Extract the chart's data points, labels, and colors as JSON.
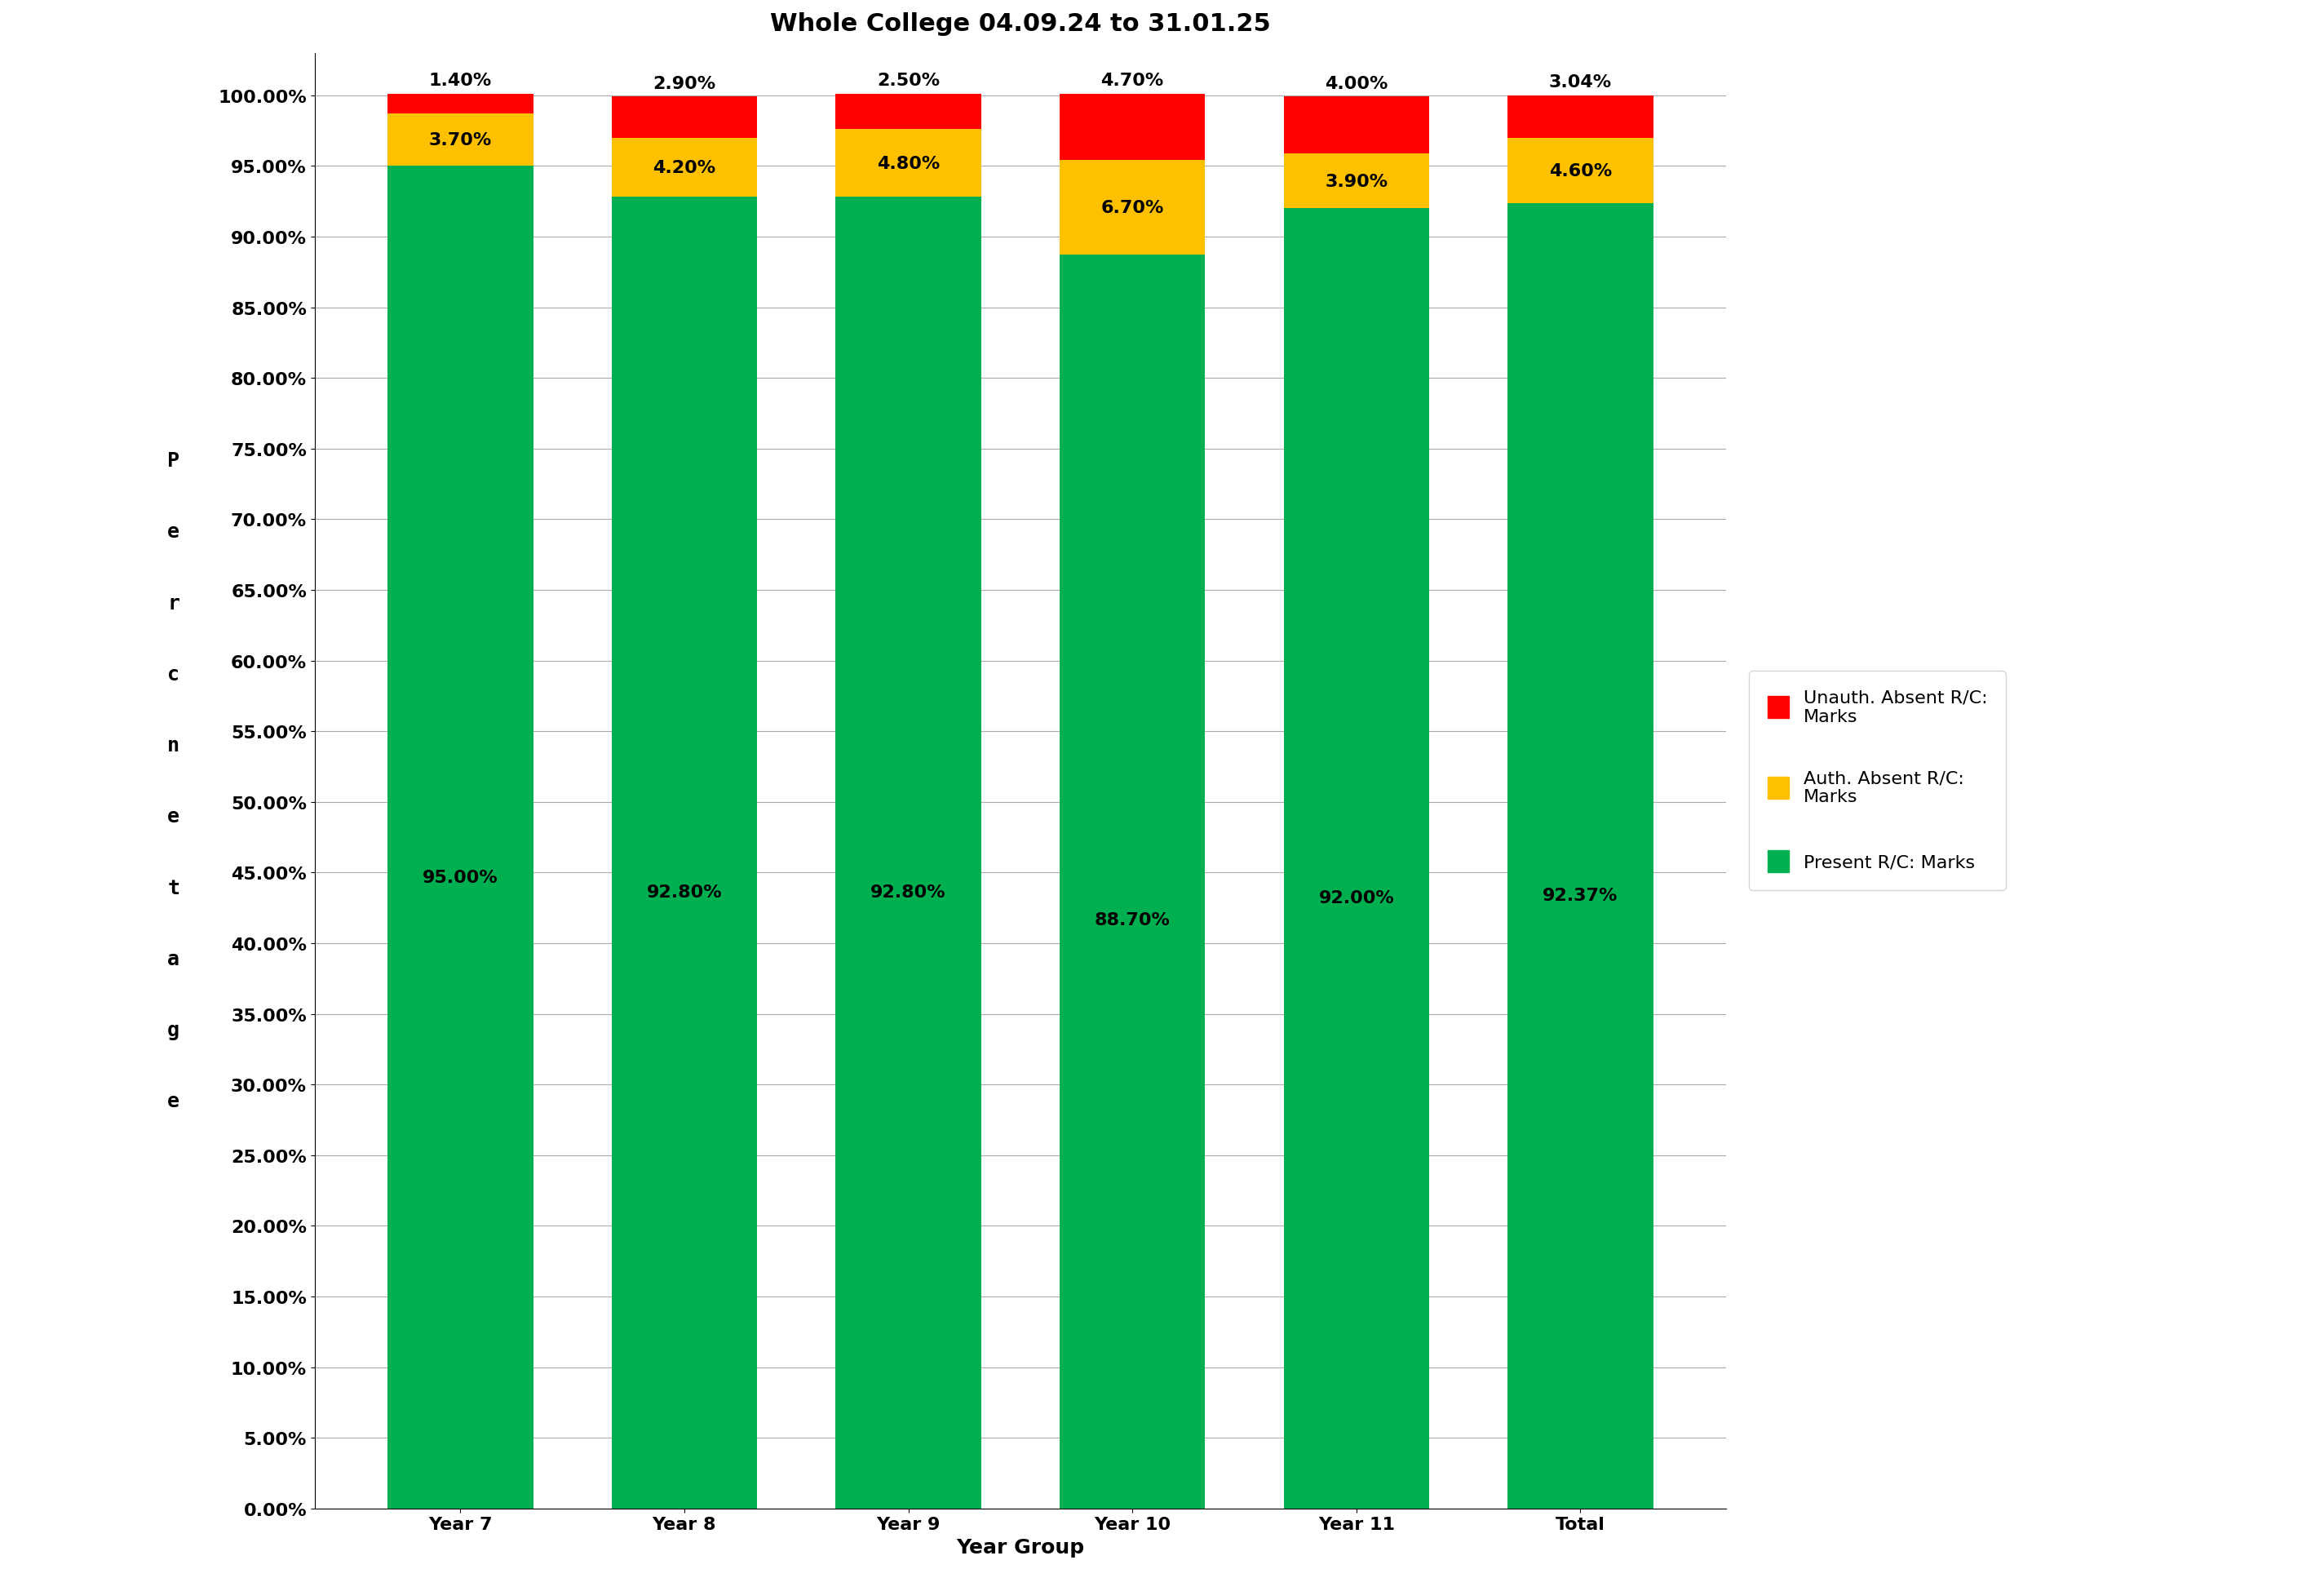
{
  "title": "Whole College 04.09.24 to 31.01.25",
  "categories": [
    "Year 7",
    "Year 8",
    "Year 9",
    "Year 10",
    "Year 11",
    "Total"
  ],
  "present": [
    95.0,
    92.8,
    92.8,
    88.7,
    92.0,
    92.37
  ],
  "auth_absent": [
    3.7,
    4.2,
    4.8,
    6.7,
    3.9,
    4.6
  ],
  "unauth_absent": [
    1.4,
    2.9,
    2.5,
    4.7,
    4.0,
    3.04
  ],
  "present_color": "#00B050",
  "auth_absent_color": "#FFC000",
  "unauth_absent_color": "#FF0000",
  "xlabel": "Year Group",
  "ylabel_letters": [
    "P",
    "e",
    "r",
    "c",
    "n",
    "e",
    "t",
    "a",
    "g",
    "e"
  ],
  "ylim": [
    0,
    103
  ],
  "yticks": [
    0,
    5,
    10,
    15,
    20,
    25,
    30,
    35,
    40,
    45,
    50,
    55,
    60,
    65,
    70,
    75,
    80,
    85,
    90,
    95,
    100
  ],
  "ytick_labels": [
    "0.00%",
    "5.00%",
    "10.00%",
    "15.00%",
    "20.00%",
    "25.00%",
    "30.00%",
    "35.00%",
    "40.00%",
    "45.00%",
    "50.00%",
    "55.00%",
    "60.00%",
    "65.00%",
    "70.00%",
    "75.00%",
    "80.00%",
    "85.00%",
    "90.00%",
    "95.00%",
    "100.00%"
  ],
  "legend_labels": [
    "Unauth. Absent R/C:\nMarks",
    "Auth. Absent R/C:\nMarks",
    "Present R/C: Marks"
  ],
  "bar_width": 0.65,
  "title_fontsize": 22,
  "axis_label_fontsize": 18,
  "tick_fontsize": 16,
  "annotation_fontsize": 16,
  "legend_fontsize": 16,
  "background_color": "#FFFFFF",
  "grid_color": "#AAAAAA"
}
